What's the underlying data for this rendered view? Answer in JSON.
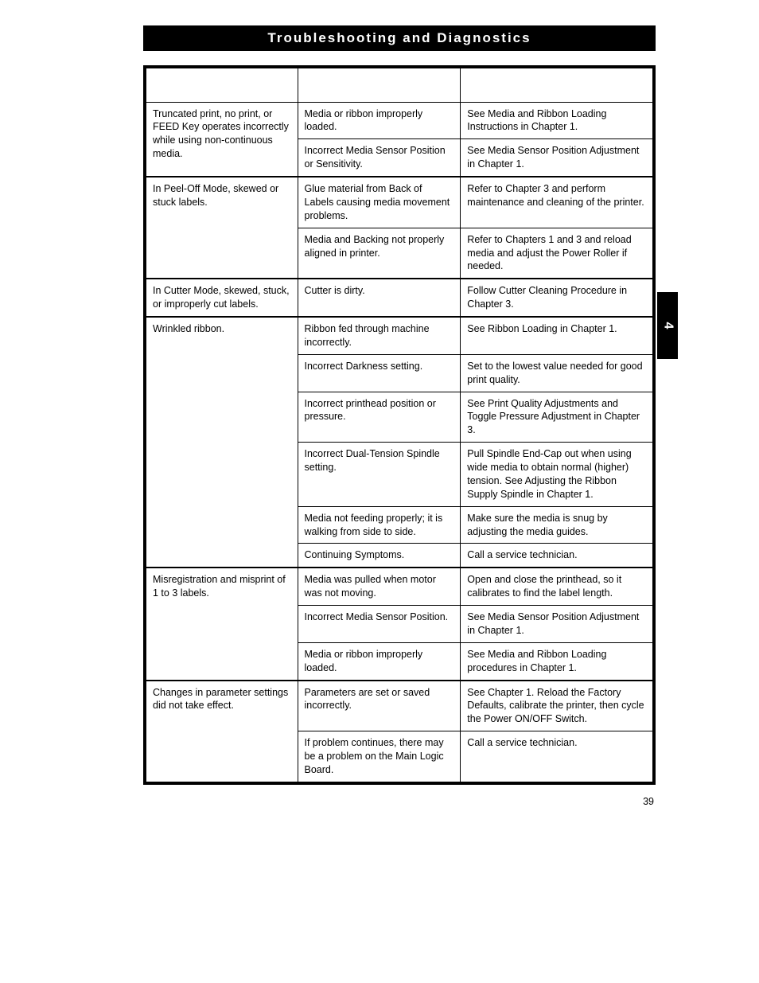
{
  "header": "Troubleshooting and Diagnostics",
  "side_tab": "4",
  "page_number": "39",
  "table": {
    "columns": [
      "",
      "",
      ""
    ],
    "groups": [
      {
        "symptom": "Truncated print, no print, or FEED Key operates incorrectly while using non-continuous media.",
        "rows": [
          {
            "diagnosis": "Media or ribbon improperly loaded.",
            "action": "See Media and Ribbon Loading Instructions in Chapter 1."
          },
          {
            "diagnosis": "Incorrect Media Sensor Position or Sensitivity.",
            "action": "See Media Sensor Position Adjustment in Chapter 1."
          }
        ]
      },
      {
        "symptom": "In Peel-Off Mode, skewed or stuck labels.",
        "rows": [
          {
            "diagnosis": "Glue material from Back of Labels causing media movement problems.",
            "action": "Refer to Chapter 3 and perform maintenance and cleaning of the printer."
          },
          {
            "diagnosis": "Media and Backing not properly aligned in printer.",
            "action": "Refer to Chapters 1 and 3 and reload media and adjust the Power Roller if needed."
          }
        ]
      },
      {
        "symptom": "In Cutter Mode, skewed, stuck, or improperly cut labels.",
        "rows": [
          {
            "diagnosis": "Cutter is dirty.",
            "action": "Follow Cutter Cleaning Procedure in Chapter 3."
          }
        ]
      },
      {
        "symptom": "Wrinkled ribbon.",
        "rows": [
          {
            "diagnosis": "Ribbon fed through machine incorrectly.",
            "action": "See Ribbon Loading in Chapter 1."
          },
          {
            "diagnosis": "Incorrect Darkness setting.",
            "action": "Set to the lowest value needed for good print quality."
          },
          {
            "diagnosis": "Incorrect printhead position or pressure.",
            "action": "See Print Quality Adjustments and Toggle Pressure Adjustment in Chapter 3."
          },
          {
            "diagnosis": "Incorrect Dual-Tension Spindle setting.",
            "action": "Pull Spindle End-Cap out when using wide media to obtain normal (higher) tension. See Adjusting the Ribbon Supply Spindle in Chapter 1."
          },
          {
            "diagnosis": "Media not feeding properly; it is walking from side to side.",
            "action": "Make sure the media is snug by adjusting the media guides."
          },
          {
            "diagnosis": "Continuing Symptoms.",
            "action": "Call a service technician."
          }
        ]
      },
      {
        "symptom": "Misregistration and misprint of 1 to 3 labels.",
        "rows": [
          {
            "diagnosis": "Media was pulled when motor was not moving.",
            "action": "Open and close the printhead, so it calibrates to find the label length."
          },
          {
            "diagnosis": "Incorrect Media Sensor Position.",
            "action": "See Media Sensor Position Adjustment in Chapter 1."
          },
          {
            "diagnosis": "Media or ribbon improperly loaded.",
            "action": "See Media and Ribbon Loading procedures in Chapter 1."
          }
        ]
      },
      {
        "symptom": "Changes in parameter settings did not take effect.",
        "rows": [
          {
            "diagnosis": "Parameters are set or saved incorrectly.",
            "action": "See Chapter 1. Reload the Factory Defaults, calibrate the printer, then cycle the Power ON/OFF Switch."
          },
          {
            "diagnosis": "If problem continues, there may be a problem on the Main Logic Board.",
            "action": "Call a service technician."
          }
        ]
      }
    ]
  }
}
